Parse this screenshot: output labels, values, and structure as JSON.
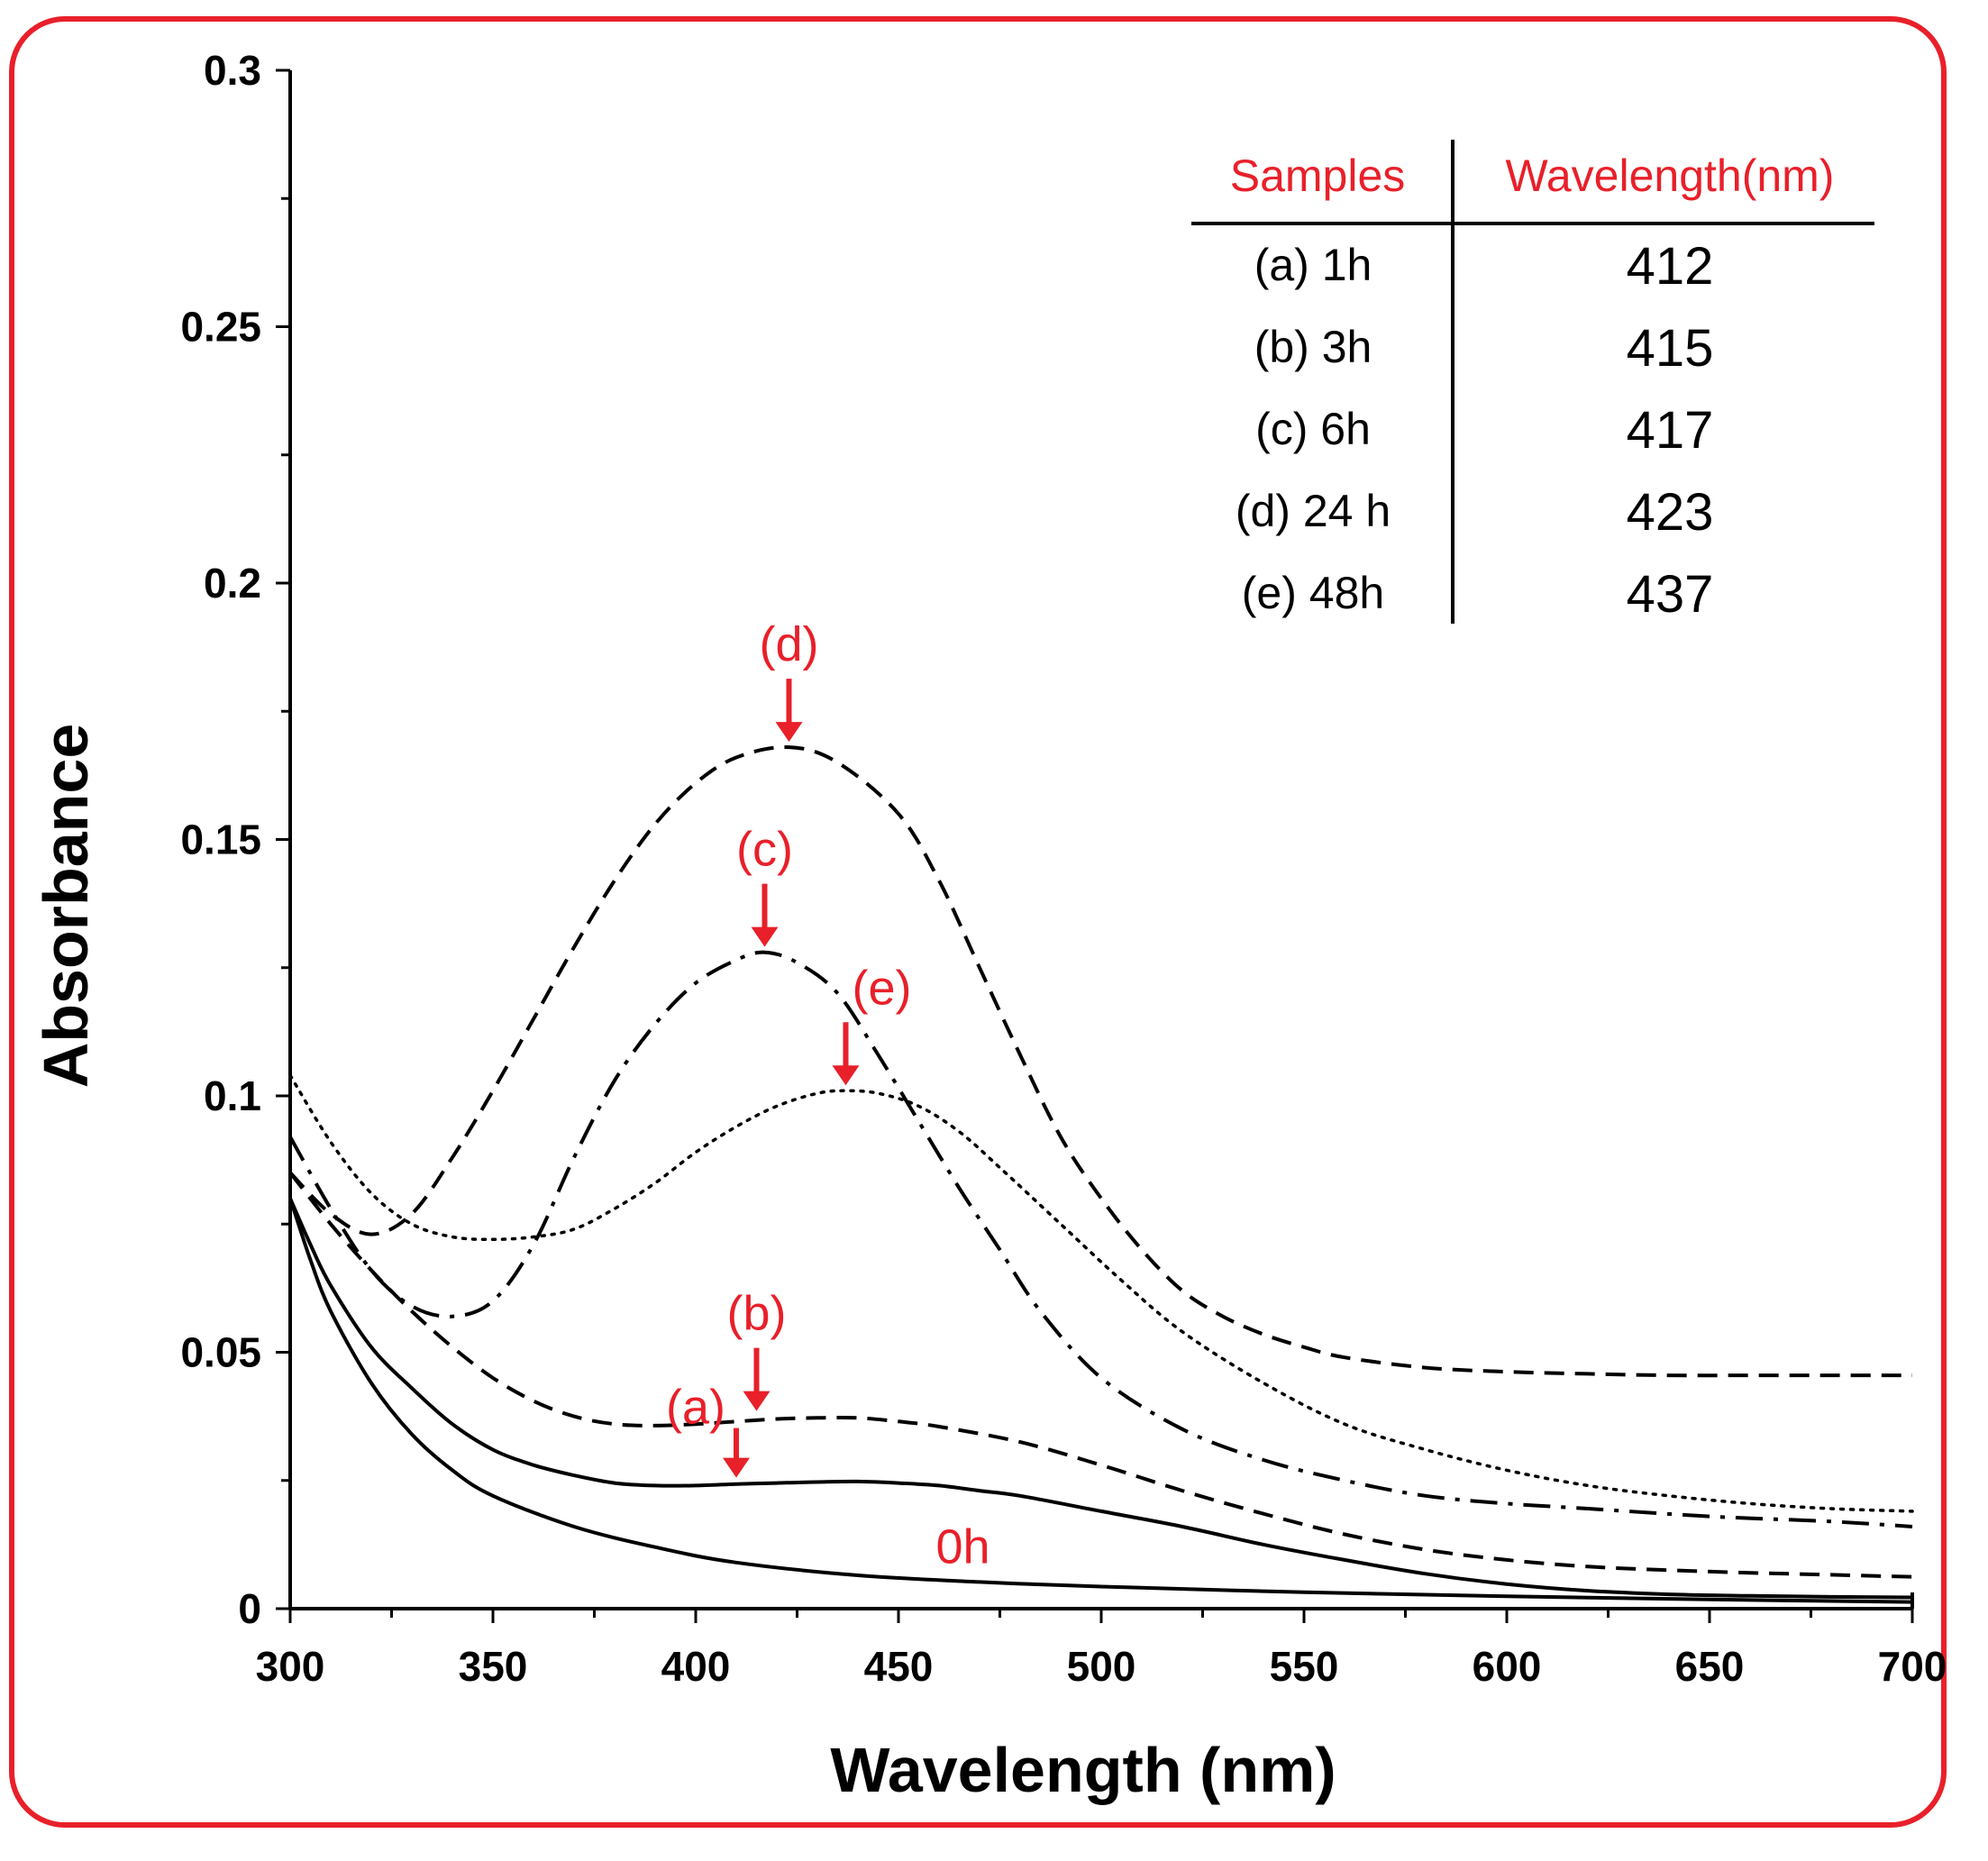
{
  "colors": {
    "accent": "#e8202a",
    "ink": "#000000",
    "background": "#ffffff"
  },
  "chart_data": {
    "type": "line",
    "title": "",
    "xlabel": "Wavelength (nm)",
    "ylabel": "Absorbance",
    "xlim": [
      300,
      700
    ],
    "ylim": [
      0,
      0.3
    ],
    "grid": false,
    "x_ticks": [
      300,
      350,
      400,
      450,
      500,
      550,
      600,
      650,
      700
    ],
    "x_tick_labels": [
      "300",
      "350",
      "400",
      "450",
      "500",
      "550",
      "600",
      "650",
      "700"
    ],
    "y_ticks": [
      0,
      0.05,
      0.1,
      0.15,
      0.2,
      0.25,
      0.3
    ],
    "y_tick_labels": [
      "0",
      "0.05",
      "0.1",
      "0.15",
      "0.2",
      "0.25",
      "0.3"
    ],
    "series": [
      {
        "name": "0h",
        "label": "0h",
        "style": "solid",
        "x": [
          300,
          305,
          310,
          320,
          330,
          340,
          350,
          370,
          390,
          410,
          440,
          470,
          500,
          550,
          600,
          650,
          700
        ],
        "y": [
          0.08,
          0.068,
          0.058,
          0.044,
          0.034,
          0.027,
          0.022,
          0.016,
          0.012,
          0.009,
          0.0065,
          0.0052,
          0.0043,
          0.0032,
          0.0024,
          0.0018,
          0.0013
        ]
      },
      {
        "name": "(a) 1h",
        "label": "(a)",
        "style": "solid",
        "x": [
          300,
          305,
          310,
          320,
          330,
          340,
          350,
          360,
          370,
          380,
          390,
          400,
          410,
          420,
          430,
          440,
          450,
          460,
          470,
          480,
          500,
          520,
          540,
          560,
          580,
          600,
          620,
          640,
          660,
          680,
          700
        ],
        "y": [
          0.08,
          0.071,
          0.063,
          0.051,
          0.043,
          0.036,
          0.031,
          0.028,
          0.026,
          0.0245,
          0.024,
          0.024,
          0.0243,
          0.0245,
          0.0247,
          0.0248,
          0.0245,
          0.024,
          0.023,
          0.022,
          0.019,
          0.016,
          0.0125,
          0.0095,
          0.0068,
          0.0048,
          0.0035,
          0.0028,
          0.0025,
          0.0023,
          0.0022
        ]
      },
      {
        "name": "(b) 3h",
        "label": "(b)",
        "style": "dashed",
        "x": [
          300,
          310,
          320,
          330,
          340,
          350,
          360,
          370,
          380,
          390,
          400,
          410,
          420,
          430,
          440,
          450,
          460,
          480,
          500,
          520,
          540,
          560,
          580,
          600,
          620,
          640,
          660,
          680,
          700
        ],
        "y": [
          0.085,
          0.075,
          0.066,
          0.058,
          0.051,
          0.045,
          0.0405,
          0.0375,
          0.036,
          0.0357,
          0.036,
          0.0365,
          0.037,
          0.0372,
          0.0372,
          0.0365,
          0.0355,
          0.0325,
          0.028,
          0.023,
          0.0185,
          0.0145,
          0.0115,
          0.0095,
          0.0082,
          0.0075,
          0.007,
          0.0066,
          0.0062
        ]
      },
      {
        "name": "(c) 6h",
        "label": "(c)",
        "style": "dashdot",
        "x": [
          300,
          310,
          320,
          330,
          340,
          350,
          360,
          370,
          380,
          390,
          400,
          410,
          417,
          425,
          435,
          445,
          455,
          465,
          475,
          485,
          500,
          520,
          540,
          560,
          580,
          600,
          620,
          650,
          680,
          700
        ],
        "y": [
          0.092,
          0.078,
          0.066,
          0.059,
          0.057,
          0.06,
          0.071,
          0.088,
          0.103,
          0.114,
          0.122,
          0.1265,
          0.128,
          0.126,
          0.12,
          0.108,
          0.095,
          0.082,
          0.07,
          0.058,
          0.045,
          0.035,
          0.029,
          0.025,
          0.022,
          0.0205,
          0.0195,
          0.018,
          0.017,
          0.016
        ]
      },
      {
        "name": "(d) 24 h",
        "label": "(d)",
        "style": "dashed",
        "x": [
          300,
          310,
          320,
          330,
          340,
          350,
          360,
          370,
          380,
          390,
          400,
          410,
          423,
          435,
          450,
          460,
          470,
          480,
          490,
          500,
          510,
          520,
          530,
          540,
          550,
          560,
          580,
          600,
          620,
          640,
          660,
          680,
          700
        ],
        "y": [
          0.085,
          0.077,
          0.073,
          0.077,
          0.088,
          0.101,
          0.115,
          0.129,
          0.142,
          0.153,
          0.161,
          0.166,
          0.168,
          0.165,
          0.155,
          0.142,
          0.125,
          0.108,
          0.092,
          0.08,
          0.07,
          0.062,
          0.057,
          0.0535,
          0.051,
          0.049,
          0.047,
          0.0462,
          0.0458,
          0.0455,
          0.0455,
          0.0455,
          0.0455
        ]
      },
      {
        "name": "(e) 48h",
        "label": "(e)",
        "style": "dotted",
        "x": [
          300,
          310,
          320,
          330,
          340,
          350,
          360,
          370,
          380,
          390,
          400,
          410,
          420,
          430,
          437,
          445,
          455,
          465,
          475,
          490,
          505,
          520,
          540,
          560,
          580,
          600,
          620,
          640,
          660,
          680,
          700
        ],
        "y": [
          0.104,
          0.091,
          0.081,
          0.075,
          0.0725,
          0.072,
          0.0725,
          0.074,
          0.078,
          0.083,
          0.089,
          0.094,
          0.098,
          0.1005,
          0.101,
          0.1005,
          0.098,
          0.093,
          0.086,
          0.075,
          0.064,
          0.054,
          0.044,
          0.036,
          0.031,
          0.027,
          0.024,
          0.022,
          0.0205,
          0.0195,
          0.019
        ]
      }
    ],
    "annotations": [
      {
        "text": "(a)",
        "x": 410,
        "y": 0.0245,
        "kind": "arrow"
      },
      {
        "text": "(b)",
        "x": 415,
        "y": 0.0375,
        "kind": "arrow"
      },
      {
        "text": "(c)",
        "x": 417,
        "y": 0.128,
        "kind": "arrow"
      },
      {
        "text": "(d)",
        "x": 423,
        "y": 0.168,
        "kind": "arrow"
      },
      {
        "text": "(e)",
        "x": 437,
        "y": 0.101,
        "kind": "arrow"
      },
      {
        "text": "0h",
        "x": 457,
        "y": 0.012,
        "kind": "label"
      }
    ],
    "table": {
      "headers": [
        "Samples",
        "Wavelength(nm)"
      ],
      "rows": [
        {
          "sample": "(a) 1h",
          "wavelength": "412"
        },
        {
          "sample": "(b) 3h",
          "wavelength": "415"
        },
        {
          "sample": "(c) 6h",
          "wavelength": "417"
        },
        {
          "sample": "(d) 24 h",
          "wavelength": "423"
        },
        {
          "sample": "(e) 48h",
          "wavelength": "437"
        }
      ]
    }
  }
}
